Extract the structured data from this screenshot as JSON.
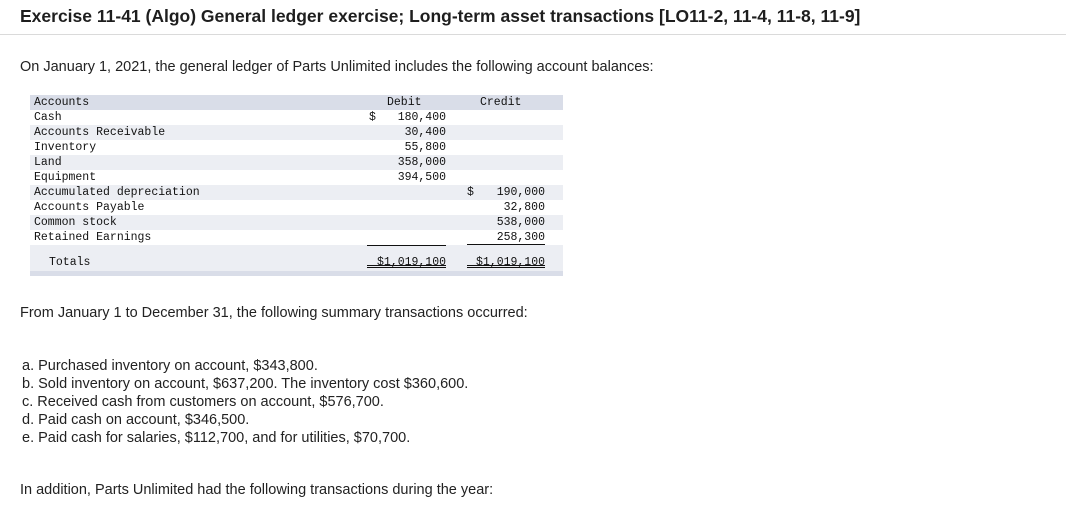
{
  "title": "Exercise 11-41 (Algo) General ledger exercise; Long-term asset transactions [LO11-2, 11-4, 11-8, 11-9]",
  "intro": "On January 1, 2021, the general ledger of Parts Unlimited includes the following account balances:",
  "ledger": {
    "headers": {
      "accounts": "Accounts",
      "debit": "Debit",
      "credit": "Credit"
    },
    "rows": [
      {
        "account": "Cash",
        "debit_currency": "$",
        "debit": "180,400",
        "credit_currency": "",
        "credit": ""
      },
      {
        "account": "Accounts Receivable",
        "debit_currency": "",
        "debit": "30,400",
        "credit_currency": "",
        "credit": ""
      },
      {
        "account": "Inventory",
        "debit_currency": "",
        "debit": "55,800",
        "credit_currency": "",
        "credit": ""
      },
      {
        "account": "Land",
        "debit_currency": "",
        "debit": "358,000",
        "credit_currency": "",
        "credit": ""
      },
      {
        "account": "Equipment",
        "debit_currency": "",
        "debit": "394,500",
        "credit_currency": "",
        "credit": ""
      },
      {
        "account": "Accumulated depreciation",
        "debit_currency": "",
        "debit": "",
        "credit_currency": "$",
        "credit": "190,000"
      },
      {
        "account": "Accounts Payable",
        "debit_currency": "",
        "debit": "",
        "credit_currency": "",
        "credit": "32,800"
      },
      {
        "account": "Common stock",
        "debit_currency": "",
        "debit": "",
        "credit_currency": "",
        "credit": "538,000"
      },
      {
        "account": "Retained Earnings",
        "debit_currency": "",
        "debit": "",
        "credit_currency": "",
        "credit": "258,300"
      }
    ],
    "totals": {
      "label": "Totals",
      "debit": "$1,019,100",
      "credit": "$1,019,100"
    }
  },
  "transactions_intro": "From January 1 to December 31, the following summary transactions occurred:",
  "transactions": [
    "a. Purchased inventory on account, $343,800.",
    "b. Sold inventory on account, $637,200. The inventory cost $360,600.",
    "c. Received cash from customers on account, $576,700.",
    "d. Paid cash on account, $346,500.",
    "e. Paid cash for salaries, $112,700, and for utilities, $70,700."
  ],
  "addition": "In addition, Parts Unlimited had the following transactions during the year:"
}
